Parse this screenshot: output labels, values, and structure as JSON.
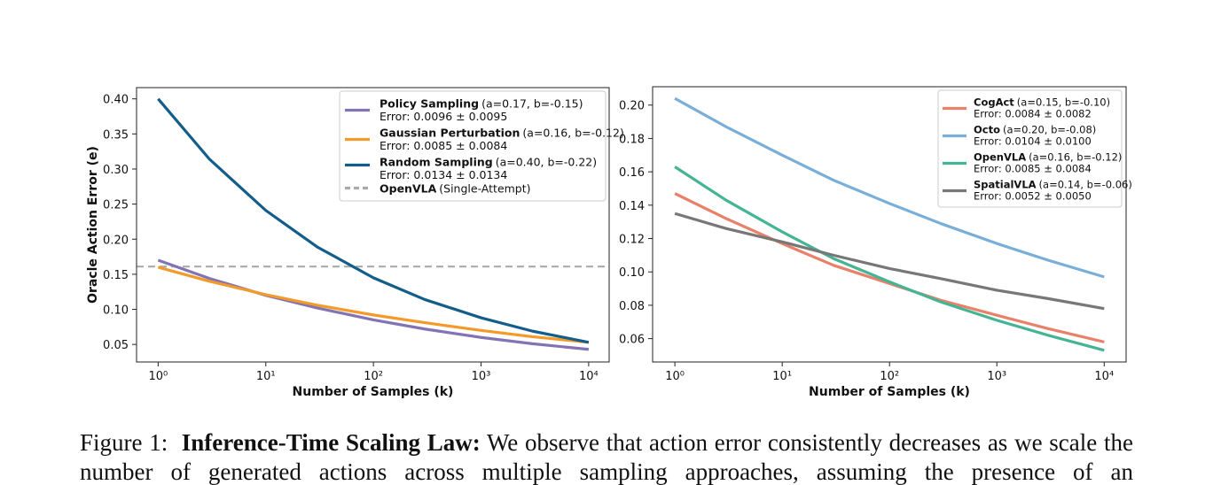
{
  "chart_data": [
    {
      "type": "line",
      "xscale": "log",
      "xlabel": "Number of Samples (k)",
      "ylabel": "Oracle Action Error (e)",
      "x": [
        1,
        3,
        10,
        30,
        100,
        300,
        1000,
        3000,
        10000
      ],
      "xlim": [
        0.63,
        15500
      ],
      "xticks": [
        {
          "value": 1,
          "label": "10⁰"
        },
        {
          "value": 10,
          "label": "10¹"
        },
        {
          "value": 100,
          "label": "10²"
        },
        {
          "value": 1000,
          "label": "10³"
        },
        {
          "value": 10000,
          "label": "10⁴"
        }
      ],
      "ylim": [
        0.025,
        0.416
      ],
      "yticks": [
        {
          "value": 0.05,
          "label": "0.05"
        },
        {
          "value": 0.1,
          "label": "0.10"
        },
        {
          "value": 0.15,
          "label": "0.15"
        },
        {
          "value": 0.2,
          "label": "0.20"
        },
        {
          "value": 0.25,
          "label": "0.25"
        },
        {
          "value": 0.3,
          "label": "0.30"
        },
        {
          "value": 0.35,
          "label": "0.35"
        },
        {
          "value": 0.4,
          "label": "0.40"
        }
      ],
      "legend": "upper right",
      "series": [
        {
          "name": "Policy Sampling",
          "params": "(a=0.17, b=-0.15)",
          "error": "Error: 0.0096 ± 0.0095",
          "color": "#8273b5",
          "values": [
            0.17,
            0.144,
            0.12,
            0.102,
            0.085,
            0.072,
            0.06,
            0.051,
            0.043
          ]
        },
        {
          "name": "Gaussian Perturbation",
          "params": "(a=0.16, b=-0.12)",
          "error": "Error: 0.0085 ± 0.0084",
          "color": "#f39a2b",
          "values": [
            0.16,
            0.14,
            0.121,
            0.106,
            0.092,
            0.081,
            0.07,
            0.061,
            0.053
          ]
        },
        {
          "name": "Random Sampling",
          "params": "(a=0.40, b=-0.22)",
          "error": "Error: 0.0134 ± 0.0134",
          "color": "#125d8a",
          "values": [
            0.4,
            0.314,
            0.241,
            0.189,
            0.145,
            0.114,
            0.088,
            0.069,
            0.053
          ]
        }
      ],
      "reference_lines": [
        {
          "name": "OpenVLA",
          "params": "(Single-Attempt)",
          "value": 0.161,
          "color": "#aaaaaa"
        }
      ]
    },
    {
      "type": "line",
      "xscale": "log",
      "xlabel": "Number of Samples (k)",
      "x": [
        1,
        3,
        10,
        30,
        100,
        300,
        1000,
        3000,
        10000
      ],
      "xlim": [
        0.62,
        16000
      ],
      "xticks": [
        {
          "value": 1,
          "label": "10⁰"
        },
        {
          "value": 10,
          "label": "10¹"
        },
        {
          "value": 100,
          "label": "10²"
        },
        {
          "value": 1000,
          "label": "10³"
        },
        {
          "value": 10000,
          "label": "10⁴"
        }
      ],
      "ylim": [
        0.046,
        0.211
      ],
      "yticks": [
        {
          "value": 0.06,
          "label": "0.06"
        },
        {
          "value": 0.08,
          "label": "0.08"
        },
        {
          "value": 0.1,
          "label": "0.10"
        },
        {
          "value": 0.12,
          "label": "0.12"
        },
        {
          "value": 0.14,
          "label": "0.14"
        },
        {
          "value": 0.16,
          "label": "0.16"
        },
        {
          "value": 0.18,
          "label": "0.18"
        },
        {
          "value": 0.2,
          "label": "0.20"
        }
      ],
      "legend": "upper right",
      "series": [
        {
          "name": "CogAct",
          "params": "(a=0.15, b=-0.10)",
          "error": "Error: 0.0084 ± 0.0082",
          "color": "#e8806a",
          "values": [
            0.147,
            0.132,
            0.117,
            0.104,
            0.093,
            0.083,
            0.074,
            0.066,
            0.058
          ]
        },
        {
          "name": "Octo",
          "params": "(a=0.20, b=-0.08)",
          "error": "Error: 0.0104 ± 0.0100",
          "color": "#78aed8",
          "values": [
            0.204,
            0.187,
            0.17,
            0.155,
            0.141,
            0.129,
            0.117,
            0.107,
            0.097
          ]
        },
        {
          "name": "OpenVLA",
          "params": "(a=0.16, b=-0.12)",
          "error": "Error: 0.0085 ± 0.0084",
          "color": "#45b494",
          "values": [
            0.163,
            0.143,
            0.124,
            0.108,
            0.094,
            0.082,
            0.071,
            0.062,
            0.053
          ]
        },
        {
          "name": "SpatialVLA",
          "params": "(a=0.14, b=-0.06)",
          "error": "Error: 0.0052 ± 0.0050",
          "color": "#777777",
          "values": [
            0.135,
            0.126,
            0.118,
            0.11,
            0.102,
            0.096,
            0.089,
            0.084,
            0.078
          ]
        }
      ]
    }
  ],
  "caption": {
    "label": "Figure 1:",
    "title": "Inference-Time Scaling Law:",
    "text": "We observe that action error consistently decreases as we scale the number of generated actions across multiple sampling approaches, assuming the presence of an"
  }
}
